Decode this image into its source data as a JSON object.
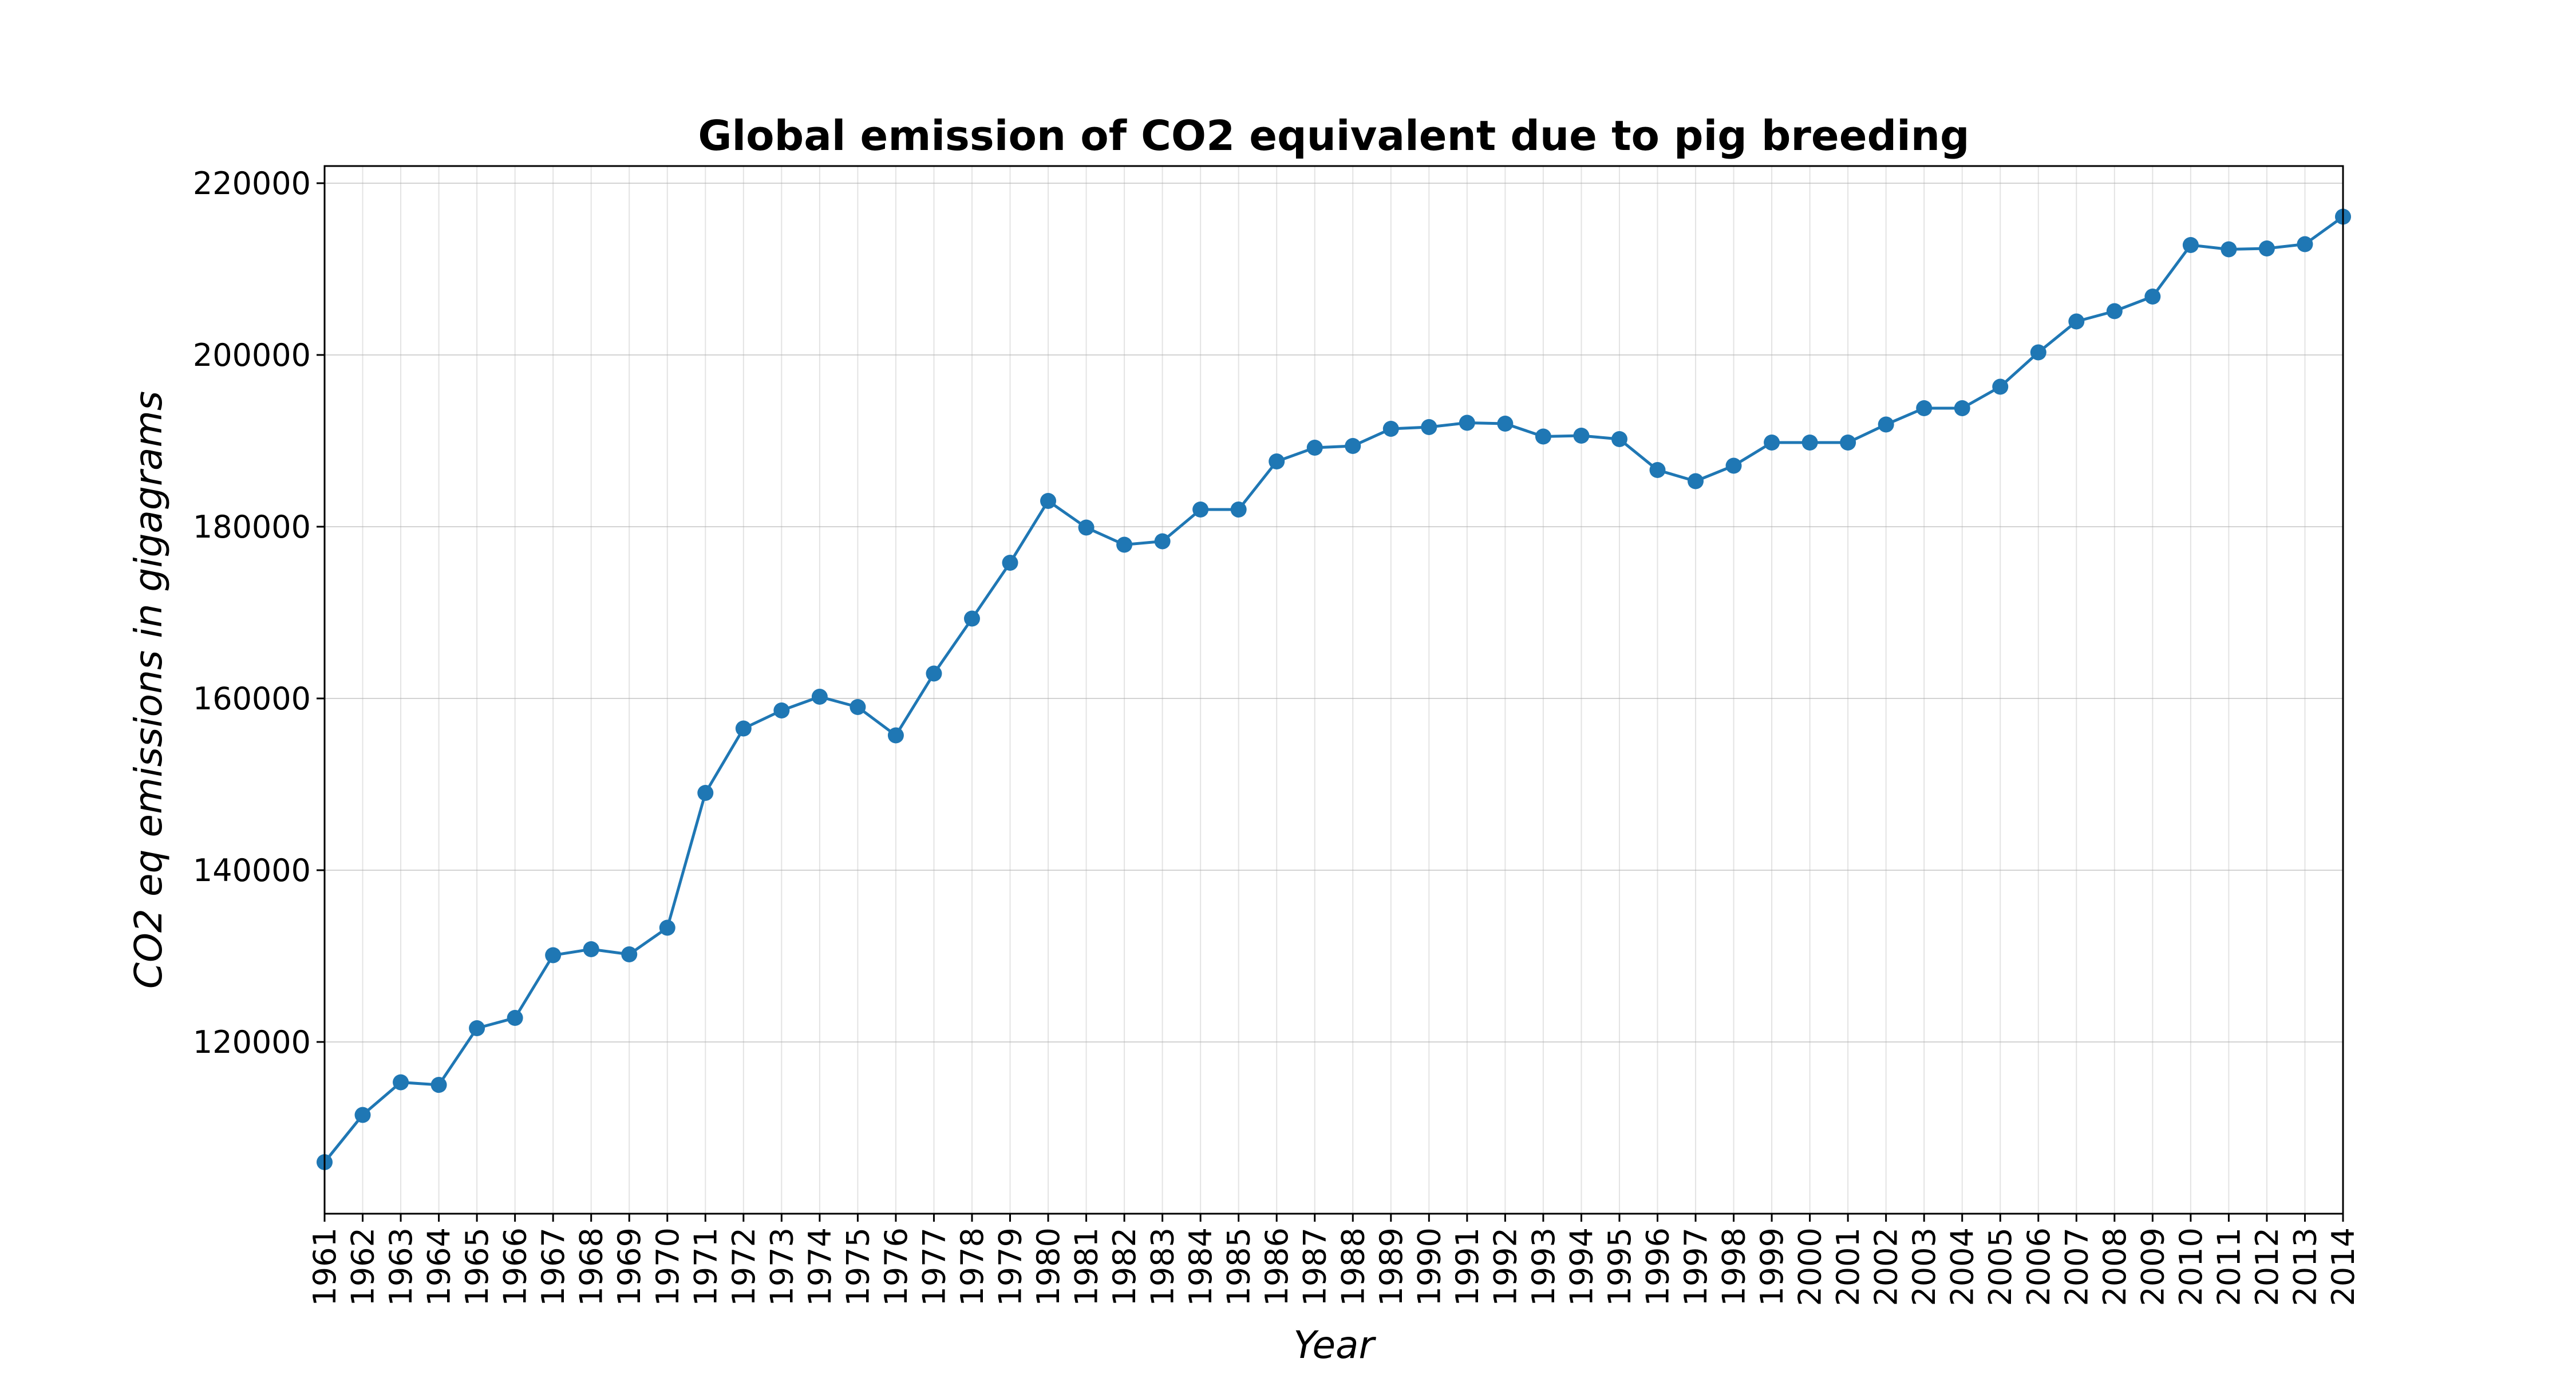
{
  "chart_data": {
    "type": "line",
    "title": "Global emission of CO2 equivalent due to pig breeding",
    "xlabel": "Year",
    "ylabel": "CO2 eq emissions in gigagrams",
    "xlim": [
      1961,
      2014
    ],
    "ylim": [
      100000,
      222000
    ],
    "yticks": [
      120000,
      140000,
      160000,
      180000,
      200000,
      220000
    ],
    "grid": true,
    "color": "#1f77b4",
    "x": [
      1961,
      1962,
      1963,
      1964,
      1965,
      1966,
      1967,
      1968,
      1969,
      1970,
      1971,
      1972,
      1973,
      1974,
      1975,
      1976,
      1977,
      1978,
      1979,
      1980,
      1981,
      1982,
      1983,
      1984,
      1985,
      1986,
      1987,
      1988,
      1989,
      1990,
      1991,
      1992,
      1993,
      1994,
      1995,
      1996,
      1997,
      1998,
      1999,
      2000,
      2001,
      2002,
      2003,
      2004,
      2005,
      2006,
      2007,
      2008,
      2009,
      2010,
      2011,
      2012,
      2013,
      2014
    ],
    "values": [
      106000,
      111500,
      115300,
      115000,
      121600,
      122800,
      130100,
      130800,
      130200,
      133300,
      149000,
      156500,
      158600,
      160200,
      159000,
      155700,
      162900,
      169300,
      175800,
      183000,
      179900,
      177900,
      178300,
      182000,
      182000,
      187600,
      189200,
      189400,
      191400,
      191600,
      192100,
      192000,
      190500,
      190600,
      190200,
      186600,
      185300,
      187100,
      189800,
      189800,
      189800,
      191900,
      193800,
      193800,
      196300,
      200300,
      203900,
      205100,
      206800,
      212800,
      212300,
      212400,
      212900,
      216100
    ]
  }
}
